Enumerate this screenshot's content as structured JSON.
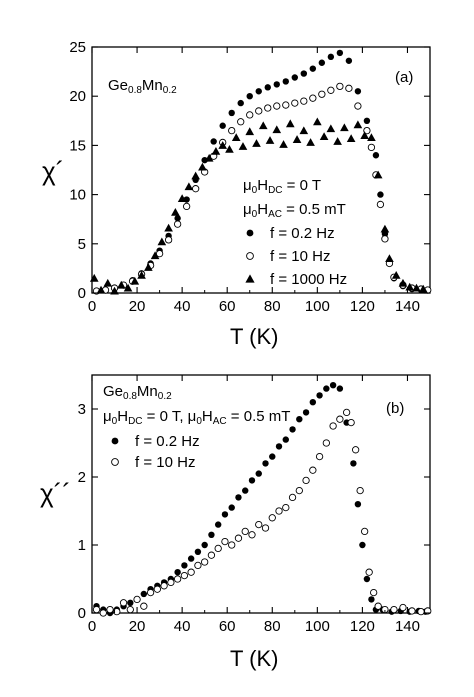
{
  "chart_data": [
    {
      "type": "scatter",
      "panel_label": "(a)",
      "material": {
        "base": "Ge",
        "base_sub": "0.8",
        "dopant": "Mn",
        "dopant_sub": "0.2"
      },
      "conditions": [
        "μ0HDC = 0 T",
        "μ0HAC = 0.5 mT"
      ],
      "xlabel": "T (K)",
      "ylabel": "χ´",
      "xlim": [
        0,
        150
      ],
      "ylim": [
        0,
        25
      ],
      "x_ticks": [
        0,
        20,
        40,
        60,
        80,
        100,
        120,
        140
      ],
      "y_ticks": [
        0,
        5,
        10,
        15,
        20,
        25
      ],
      "legend_position": "right-center",
      "series": [
        {
          "name": "f = 0.2 Hz",
          "marker": "filled-circle",
          "points": [
            [
              2,
              0.2
            ],
            [
              6,
              0.3
            ],
            [
              10,
              0.5
            ],
            [
              14,
              0.8
            ],
            [
              18,
              1.3
            ],
            [
              22,
              2.0
            ],
            [
              26,
              3.0
            ],
            [
              30,
              4.3
            ],
            [
              34,
              5.8
            ],
            [
              38,
              7.6
            ],
            [
              42,
              9.5
            ],
            [
              46,
              11.5
            ],
            [
              50,
              13.5
            ],
            [
              54,
              15.4
            ],
            [
              58,
              17.0
            ],
            [
              62,
              18.3
            ],
            [
              66,
              19.3
            ],
            [
              70,
              20.0
            ],
            [
              74,
              20.5
            ],
            [
              78,
              20.9
            ],
            [
              82,
              21.2
            ],
            [
              86,
              21.5
            ],
            [
              90,
              21.9
            ],
            [
              94,
              22.3
            ],
            [
              98,
              22.8
            ],
            [
              102,
              23.4
            ],
            [
              106,
              24.0
            ],
            [
              110,
              24.4
            ],
            [
              114,
              23.6
            ],
            [
              118,
              20.5
            ],
            [
              122,
              17.5
            ],
            [
              126,
              14.0
            ],
            [
              128,
              10.0
            ],
            [
              130,
              6.0
            ],
            [
              132,
              3.0
            ],
            [
              134,
              1.5
            ],
            [
              138,
              0.7
            ],
            [
              142,
              0.4
            ],
            [
              146,
              0.3
            ],
            [
              149,
              0.3
            ]
          ]
        },
        {
          "name": "f = 10 Hz",
          "marker": "open-circle",
          "points": [
            [
              2,
              0.2
            ],
            [
              6,
              0.3
            ],
            [
              10,
              0.5
            ],
            [
              14,
              0.8
            ],
            [
              18,
              1.2
            ],
            [
              22,
              1.9
            ],
            [
              26,
              2.8
            ],
            [
              30,
              4.0
            ],
            [
              34,
              5.4
            ],
            [
              38,
              7.0
            ],
            [
              42,
              8.8
            ],
            [
              46,
              10.6
            ],
            [
              50,
              12.3
            ],
            [
              54,
              13.9
            ],
            [
              58,
              15.3
            ],
            [
              62,
              16.5
            ],
            [
              66,
              17.4
            ],
            [
              70,
              18.1
            ],
            [
              74,
              18.5
            ],
            [
              78,
              18.8
            ],
            [
              82,
              19.0
            ],
            [
              86,
              19.1
            ],
            [
              90,
              19.3
            ],
            [
              94,
              19.5
            ],
            [
              98,
              19.8
            ],
            [
              102,
              20.2
            ],
            [
              106,
              20.6
            ],
            [
              110,
              21.0
            ],
            [
              114,
              20.8
            ],
            [
              118,
              19.0
            ],
            [
              122,
              16.5
            ],
            [
              124,
              14.8
            ],
            [
              126,
              12.0
            ],
            [
              128,
              9.0
            ],
            [
              130,
              5.5
            ],
            [
              132,
              3.0
            ],
            [
              134,
              1.6
            ],
            [
              138,
              0.8
            ],
            [
              142,
              0.5
            ],
            [
              146,
              0.4
            ],
            [
              149,
              0.3
            ]
          ]
        },
        {
          "name": "f = 1000 Hz",
          "marker": "filled-triangle",
          "points": [
            [
              1,
              1.5
            ],
            [
              4,
              0.3
            ],
            [
              7,
              1.0
            ],
            [
              10,
              0.2
            ],
            [
              13,
              0.8
            ],
            [
              16,
              0.5
            ],
            [
              19,
              1.2
            ],
            [
              22,
              1.8
            ],
            [
              25,
              2.6
            ],
            [
              28,
              3.8
            ],
            [
              31,
              5.2
            ],
            [
              34,
              6.6
            ],
            [
              37,
              8.2
            ],
            [
              40,
              9.6
            ],
            [
              43,
              10.8
            ],
            [
              46,
              11.9
            ],
            [
              49,
              12.8
            ],
            [
              52,
              13.7
            ],
            [
              55,
              14.4
            ],
            [
              58,
              15.0
            ],
            [
              61,
              14.6
            ],
            [
              64,
              15.8
            ],
            [
              67,
              14.9
            ],
            [
              70,
              16.4
            ],
            [
              73,
              15.2
            ],
            [
              76,
              17.0
            ],
            [
              79,
              15.5
            ],
            [
              82,
              16.6
            ],
            [
              85,
              15.1
            ],
            [
              88,
              17.2
            ],
            [
              91,
              15.6
            ],
            [
              94,
              16.5
            ],
            [
              97,
              15.3
            ],
            [
              100,
              17.4
            ],
            [
              103,
              15.9
            ],
            [
              106,
              16.7
            ],
            [
              109,
              15.4
            ],
            [
              112,
              16.8
            ],
            [
              115,
              15.7
            ],
            [
              118,
              17.1
            ],
            [
              121,
              16.0
            ],
            [
              124,
              15.8
            ],
            [
              127,
              12.0
            ],
            [
              130,
              6.5
            ],
            [
              132,
              3.5
            ],
            [
              135,
              1.8
            ],
            [
              138,
              1.0
            ],
            [
              141,
              0.6
            ],
            [
              144,
              0.5
            ],
            [
              147,
              0.4
            ]
          ]
        }
      ]
    },
    {
      "type": "scatter",
      "panel_label": "(b)",
      "material": {
        "base": "Ge",
        "base_sub": "0.8",
        "dopant": "Mn",
        "dopant_sub": "0.2"
      },
      "conditions": [
        "μ0HDC = 0 T, μ0HAC = 0.5 mT"
      ],
      "xlabel": "T (K)",
      "ylabel": "χ´´",
      "xlim": [
        0,
        150
      ],
      "ylim": [
        0,
        3.5
      ],
      "x_ticks": [
        0,
        20,
        40,
        60,
        80,
        100,
        120,
        140
      ],
      "y_ticks": [
        0,
        1,
        2,
        3
      ],
      "legend_position": "top-left",
      "series": [
        {
          "name": "f = 0.2 Hz",
          "marker": "filled-circle",
          "points": [
            [
              2,
              0.1
            ],
            [
              5,
              0.05
            ],
            [
              8,
              0.0
            ],
            [
              11,
              0.05
            ],
            [
              14,
              0.1
            ],
            [
              17,
              0.15
            ],
            [
              20,
              0.2
            ],
            [
              23,
              0.28
            ],
            [
              26,
              0.35
            ],
            [
              29,
              0.4
            ],
            [
              32,
              0.45
            ],
            [
              35,
              0.5
            ],
            [
              38,
              0.6
            ],
            [
              41,
              0.7
            ],
            [
              44,
              0.8
            ],
            [
              47,
              0.9
            ],
            [
              50,
              1.0
            ],
            [
              53,
              1.15
            ],
            [
              56,
              1.3
            ],
            [
              59,
              1.45
            ],
            [
              62,
              1.55
            ],
            [
              65,
              1.7
            ],
            [
              68,
              1.8
            ],
            [
              71,
              1.95
            ],
            [
              74,
              2.05
            ],
            [
              77,
              2.2
            ],
            [
              80,
              2.3
            ],
            [
              83,
              2.45
            ],
            [
              86,
              2.55
            ],
            [
              89,
              2.7
            ],
            [
              92,
              2.85
            ],
            [
              95,
              2.95
            ],
            [
              98,
              3.1
            ],
            [
              101,
              3.2
            ],
            [
              104,
              3.3
            ],
            [
              107,
              3.35
            ],
            [
              110,
              3.3
            ],
            [
              113,
              2.8
            ],
            [
              116,
              2.2
            ],
            [
              118,
              1.6
            ],
            [
              120,
              1.0
            ],
            [
              122,
              0.5
            ],
            [
              124,
              0.2
            ],
            [
              126,
              0.05
            ],
            [
              129,
              0.05
            ],
            [
              133,
              0.02
            ],
            [
              137,
              0.03
            ],
            [
              141,
              0.02
            ],
            [
              145,
              0.03
            ],
            [
              148,
              0.02
            ]
          ]
        },
        {
          "name": "f = 10 Hz",
          "marker": "open-circle",
          "points": [
            [
              2,
              0.05
            ],
            [
              5,
              0.0
            ],
            [
              8,
              0.05
            ],
            [
              11,
              0.02
            ],
            [
              14,
              0.15
            ],
            [
              17,
              0.05
            ],
            [
              20,
              0.2
            ],
            [
              23,
              0.1
            ],
            [
              26,
              0.3
            ],
            [
              29,
              0.35
            ],
            [
              32,
              0.4
            ],
            [
              35,
              0.45
            ],
            [
              38,
              0.5
            ],
            [
              41,
              0.55
            ],
            [
              44,
              0.6
            ],
            [
              47,
              0.7
            ],
            [
              50,
              0.75
            ],
            [
              53,
              0.85
            ],
            [
              56,
              0.95
            ],
            [
              59,
              1.05
            ],
            [
              62,
              1.0
            ],
            [
              65,
              1.1
            ],
            [
              68,
              1.2
            ],
            [
              71,
              1.15
            ],
            [
              74,
              1.3
            ],
            [
              77,
              1.25
            ],
            [
              80,
              1.4
            ],
            [
              83,
              1.5
            ],
            [
              86,
              1.55
            ],
            [
              89,
              1.7
            ],
            [
              92,
              1.8
            ],
            [
              95,
              1.95
            ],
            [
              98,
              2.1
            ],
            [
              101,
              2.3
            ],
            [
              104,
              2.5
            ],
            [
              107,
              2.75
            ],
            [
              110,
              2.85
            ],
            [
              113,
              2.95
            ],
            [
              115,
              2.8
            ],
            [
              117,
              2.4
            ],
            [
              119,
              1.8
            ],
            [
              121,
              1.2
            ],
            [
              123,
              0.6
            ],
            [
              125,
              0.3
            ],
            [
              127,
              0.1
            ],
            [
              130,
              0.05
            ],
            [
              134,
              0.05
            ],
            [
              138,
              0.08
            ],
            [
              142,
              0.03
            ],
            [
              146,
              0.02
            ],
            [
              149,
              0.03
            ]
          ]
        }
      ]
    }
  ]
}
